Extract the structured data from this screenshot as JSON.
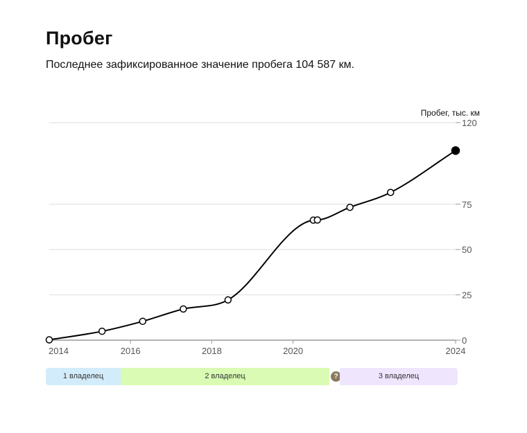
{
  "header": {
    "title": "Пробег",
    "subtitle": "Последнее зафиксированное значение пробега 104 587 км."
  },
  "chart_data": {
    "type": "line",
    "ylabel": "Пробег, тыс. км",
    "xlim": [
      2014,
      2024
    ],
    "ylim": [
      0,
      120
    ],
    "x_ticks": [
      "2014",
      "2016",
      "2018",
      "2020",
      "2024"
    ],
    "y_ticks": [
      "0",
      "25",
      "50",
      "75",
      "120"
    ],
    "y_grid": [
      0,
      25,
      50,
      75,
      120
    ],
    "grid": true,
    "points": [
      {
        "x": 2014.0,
        "y": 0.2
      },
      {
        "x": 2015.3,
        "y": 4.9
      },
      {
        "x": 2016.3,
        "y": 10.4
      },
      {
        "x": 2017.3,
        "y": 17.2
      },
      {
        "x": 2018.4,
        "y": 22.2
      },
      {
        "x": 2020.5,
        "y": 66.2
      },
      {
        "x": 2020.6,
        "y": 66.3
      },
      {
        "x": 2021.4,
        "y": 73.3
      },
      {
        "x": 2022.4,
        "y": 81.5
      },
      {
        "x": 2024.0,
        "y": 104.587
      }
    ],
    "last_point_filled": true,
    "line_color": "#000000",
    "grid_color": "#dddddd"
  },
  "owners": {
    "segments": [
      {
        "label": "1 владелец",
        "color": "#d3ecfb"
      },
      {
        "label": "2 владелец",
        "color": "#d9fbb3"
      },
      {
        "label": "3 владелец",
        "color": "#efe5fd"
      }
    ],
    "help_icon": "question-circle-icon",
    "help_glyph": "?"
  }
}
